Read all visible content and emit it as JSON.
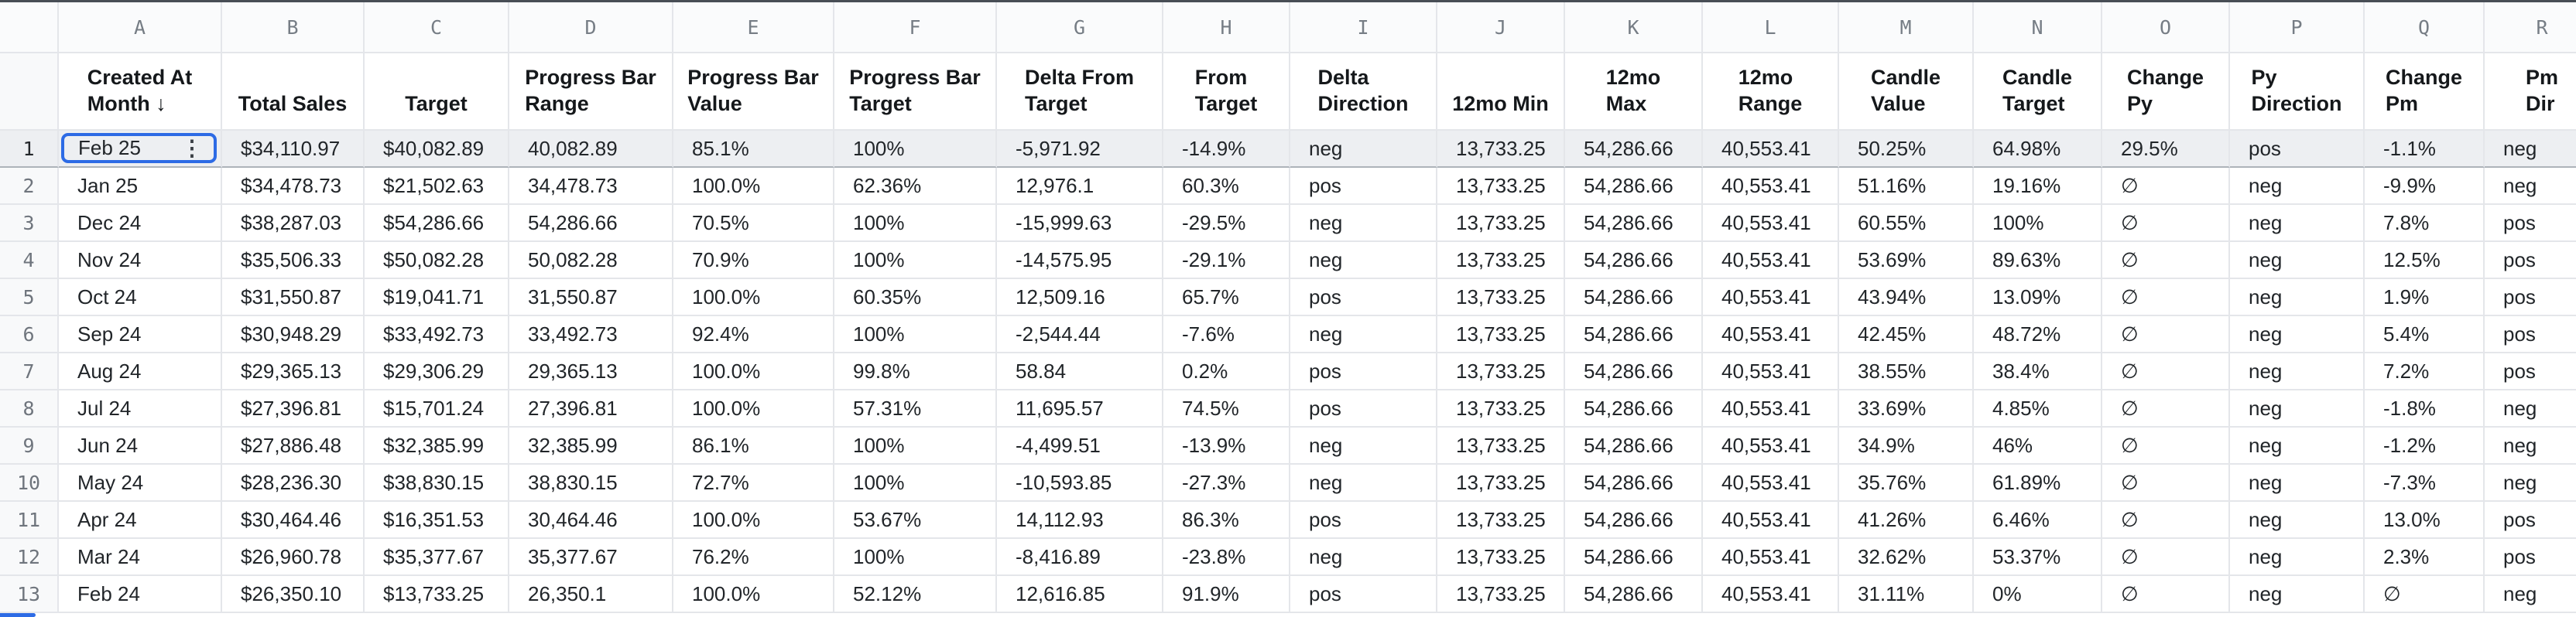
{
  "colors": {
    "accent": "#2d6be5",
    "row_highlight": "#edeff2",
    "grid_line": "#e4e6ea"
  },
  "sheet": {
    "column_letters": [
      "A",
      "B",
      "C",
      "D",
      "E",
      "F",
      "G",
      "H",
      "I",
      "J",
      "K",
      "L",
      "M",
      "N",
      "O",
      "P",
      "Q",
      "R"
    ],
    "headers": [
      {
        "lines": [
          "Created At",
          "Month ↓"
        ]
      },
      {
        "lines": [
          "Total Sales"
        ]
      },
      {
        "lines": [
          "Target"
        ]
      },
      {
        "lines": [
          "Progress Bar",
          "Range"
        ]
      },
      {
        "lines": [
          "Progress Bar",
          "Value"
        ]
      },
      {
        "lines": [
          "Progress Bar",
          "Target"
        ]
      },
      {
        "lines": [
          "Delta From",
          "Target"
        ]
      },
      {
        "lines": [
          "From",
          "Target"
        ]
      },
      {
        "lines": [
          "Delta",
          "Direction"
        ]
      },
      {
        "lines": [
          "12mo Min"
        ]
      },
      {
        "lines": [
          "12mo",
          "Max"
        ]
      },
      {
        "lines": [
          "12mo",
          "Range"
        ]
      },
      {
        "lines": [
          "Candle",
          "Value"
        ]
      },
      {
        "lines": [
          "Candle",
          "Target"
        ]
      },
      {
        "lines": [
          "Change",
          "Py"
        ]
      },
      {
        "lines": [
          "Py",
          "Direction"
        ]
      },
      {
        "lines": [
          "Change",
          "Pm"
        ]
      },
      {
        "lines": [
          "Pm",
          "Dir"
        ]
      }
    ],
    "selection": {
      "row": 1,
      "column_letter": "A",
      "value": "Feb 25",
      "menu_icon": "⋮"
    },
    "rows": [
      {
        "num": 1,
        "cells": [
          "Feb 25",
          "$34,110.97",
          "$40,082.89",
          "40,082.89",
          "85.1%",
          "100%",
          "-5,971.92",
          "-14.9%",
          "neg",
          "13,733.25",
          "54,286.66",
          "40,553.41",
          "50.25%",
          "64.98%",
          "29.5%",
          "pos",
          "-1.1%",
          "neg"
        ]
      },
      {
        "num": 2,
        "cells": [
          "Jan 25",
          "$34,478.73",
          "$21,502.63",
          "34,478.73",
          "100.0%",
          "62.36%",
          "12,976.1",
          "60.3%",
          "pos",
          "13,733.25",
          "54,286.66",
          "40,553.41",
          "51.16%",
          "19.16%",
          "∅",
          "neg",
          "-9.9%",
          "neg"
        ]
      },
      {
        "num": 3,
        "cells": [
          "Dec 24",
          "$38,287.03",
          "$54,286.66",
          "54,286.66",
          "70.5%",
          "100%",
          "-15,999.63",
          "-29.5%",
          "neg",
          "13,733.25",
          "54,286.66",
          "40,553.41",
          "60.55%",
          "100%",
          "∅",
          "neg",
          "7.8%",
          "pos"
        ]
      },
      {
        "num": 4,
        "cells": [
          "Nov 24",
          "$35,506.33",
          "$50,082.28",
          "50,082.28",
          "70.9%",
          "100%",
          "-14,575.95",
          "-29.1%",
          "neg",
          "13,733.25",
          "54,286.66",
          "40,553.41",
          "53.69%",
          "89.63%",
          "∅",
          "neg",
          "12.5%",
          "pos"
        ]
      },
      {
        "num": 5,
        "cells": [
          "Oct 24",
          "$31,550.87",
          "$19,041.71",
          "31,550.87",
          "100.0%",
          "60.35%",
          "12,509.16",
          "65.7%",
          "pos",
          "13,733.25",
          "54,286.66",
          "40,553.41",
          "43.94%",
          "13.09%",
          "∅",
          "neg",
          "1.9%",
          "pos"
        ]
      },
      {
        "num": 6,
        "cells": [
          "Sep 24",
          "$30,948.29",
          "$33,492.73",
          "33,492.73",
          "92.4%",
          "100%",
          "-2,544.44",
          "-7.6%",
          "neg",
          "13,733.25",
          "54,286.66",
          "40,553.41",
          "42.45%",
          "48.72%",
          "∅",
          "neg",
          "5.4%",
          "pos"
        ]
      },
      {
        "num": 7,
        "cells": [
          "Aug 24",
          "$29,365.13",
          "$29,306.29",
          "29,365.13",
          "100.0%",
          "99.8%",
          "58.84",
          "0.2%",
          "pos",
          "13,733.25",
          "54,286.66",
          "40,553.41",
          "38.55%",
          "38.4%",
          "∅",
          "neg",
          "7.2%",
          "pos"
        ]
      },
      {
        "num": 8,
        "cells": [
          "Jul 24",
          "$27,396.81",
          "$15,701.24",
          "27,396.81",
          "100.0%",
          "57.31%",
          "11,695.57",
          "74.5%",
          "pos",
          "13,733.25",
          "54,286.66",
          "40,553.41",
          "33.69%",
          "4.85%",
          "∅",
          "neg",
          "-1.8%",
          "neg"
        ]
      },
      {
        "num": 9,
        "cells": [
          "Jun 24",
          "$27,886.48",
          "$32,385.99",
          "32,385.99",
          "86.1%",
          "100%",
          "-4,499.51",
          "-13.9%",
          "neg",
          "13,733.25",
          "54,286.66",
          "40,553.41",
          "34.9%",
          "46%",
          "∅",
          "neg",
          "-1.2%",
          "neg"
        ]
      },
      {
        "num": 10,
        "cells": [
          "May 24",
          "$28,236.30",
          "$38,830.15",
          "38,830.15",
          "72.7%",
          "100%",
          "-10,593.85",
          "-27.3%",
          "neg",
          "13,733.25",
          "54,286.66",
          "40,553.41",
          "35.76%",
          "61.89%",
          "∅",
          "neg",
          "-7.3%",
          "neg"
        ]
      },
      {
        "num": 11,
        "cells": [
          "Apr 24",
          "$30,464.46",
          "$16,351.53",
          "30,464.46",
          "100.0%",
          "53.67%",
          "14,112.93",
          "86.3%",
          "pos",
          "13,733.25",
          "54,286.66",
          "40,553.41",
          "41.26%",
          "6.46%",
          "∅",
          "neg",
          "13.0%",
          "pos"
        ]
      },
      {
        "num": 12,
        "cells": [
          "Mar 24",
          "$26,960.78",
          "$35,377.67",
          "35,377.67",
          "76.2%",
          "100%",
          "-8,416.89",
          "-23.8%",
          "neg",
          "13,733.25",
          "54,286.66",
          "40,553.41",
          "32.62%",
          "53.37%",
          "∅",
          "neg",
          "2.3%",
          "pos"
        ]
      },
      {
        "num": 13,
        "cells": [
          "Feb 24",
          "$26,350.10",
          "$13,733.25",
          "26,350.1",
          "100.0%",
          "52.12%",
          "12,616.85",
          "91.9%",
          "pos",
          "13,733.25",
          "54,286.66",
          "40,553.41",
          "31.11%",
          "0%",
          "∅",
          "neg",
          "∅",
          "neg"
        ]
      }
    ]
  }
}
